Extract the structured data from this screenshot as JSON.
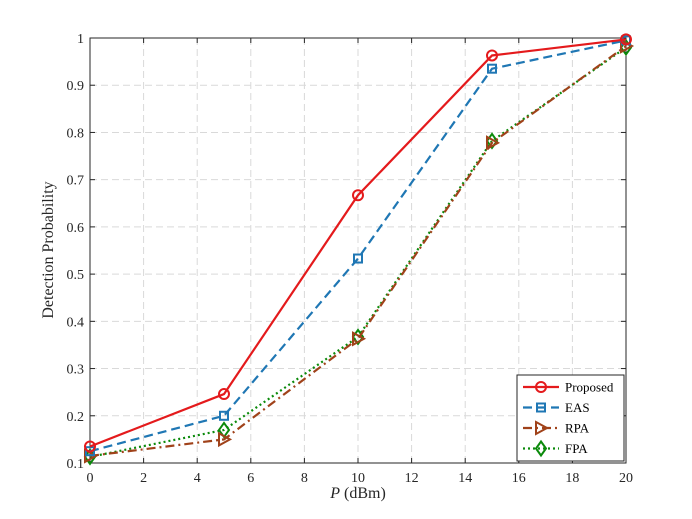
{
  "chart_data": {
    "type": "line",
    "title": "",
    "xlabel_var": "P",
    "xlabel_unit": " (dBm)",
    "ylabel": "Detection Probability",
    "xlim": [
      0,
      20
    ],
    "ylim": [
      0.1,
      1
    ],
    "xticks": [
      0,
      2,
      4,
      6,
      8,
      10,
      12,
      14,
      16,
      18,
      20
    ],
    "yticks": [
      0.1,
      0.2,
      0.3,
      0.4,
      0.5,
      0.6,
      0.7,
      0.8,
      0.9,
      1
    ],
    "ytick_labels": [
      "0.1",
      "0.2",
      "0.3",
      "0.4",
      "0.5",
      "0.6",
      "0.7",
      "0.8",
      "0.9",
      "1"
    ],
    "grid": true,
    "legend_position": "bottom-right",
    "x": [
      0,
      5,
      10,
      15,
      20
    ],
    "series": [
      {
        "name": "Proposed",
        "values": [
          0.135,
          0.246,
          0.667,
          0.963,
          0.997
        ],
        "color": "#e41a1c",
        "dash": "solid",
        "marker": "circle"
      },
      {
        "name": "EAS",
        "values": [
          0.125,
          0.2,
          0.533,
          0.935,
          0.995
        ],
        "color": "#1f77b4",
        "dash": "dashed",
        "marker": "square"
      },
      {
        "name": "RPA",
        "values": [
          0.115,
          0.15,
          0.363,
          0.778,
          0.983
        ],
        "color": "#a0421a",
        "dash": "dashdot",
        "marker": "triangle-right"
      },
      {
        "name": "FPA",
        "values": [
          0.113,
          0.17,
          0.367,
          0.782,
          0.98
        ],
        "color": "#0b8a0b",
        "dash": "dotted",
        "marker": "diamond"
      }
    ]
  }
}
